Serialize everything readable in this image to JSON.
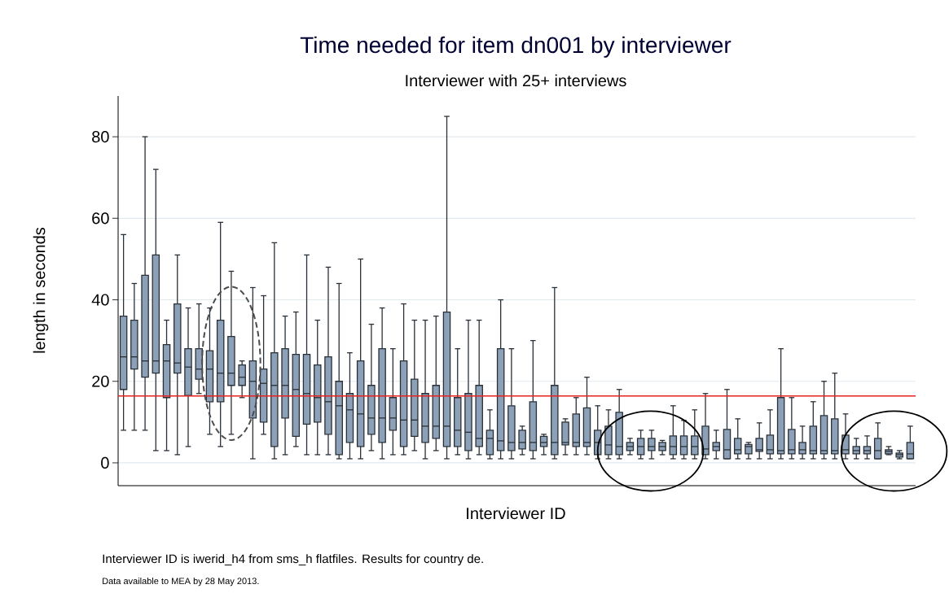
{
  "chart_data": {
    "type": "box",
    "title": "Time needed for item dn001 by interviewer",
    "subtitle": "Interviewer with 25+ interviews",
    "xlabel": "Interviewer ID",
    "ylabel": "length in seconds",
    "annotations": [
      "Interviewer ID is iwerid_h4 from sms_h flatfiles. Results for country de.",
      "Data available to MEA by 28 May 2013."
    ],
    "categories": [
      null,
      null,
      null,
      null,
      null,
      null,
      null,
      null,
      null,
      null,
      null,
      null,
      null,
      null,
      null,
      null,
      null,
      null,
      null,
      null,
      null,
      null,
      null,
      null,
      null,
      null,
      null,
      null,
      null,
      null,
      null,
      null,
      null,
      null,
      null,
      null,
      null,
      null,
      null,
      null,
      null,
      null,
      null,
      null,
      null,
      null,
      null,
      null,
      null,
      null,
      null,
      null,
      null,
      null,
      null,
      null,
      null,
      null,
      null,
      null,
      null,
      null,
      null,
      null,
      null,
      null,
      null,
      null,
      null,
      null,
      null,
      null,
      null,
      null
    ],
    "color": "#8ca1b8",
    "boxes": [
      {
        "low": 8,
        "q1": 18,
        "median": 26,
        "q3": 36,
        "high": 56
      },
      {
        "low": 8,
        "q1": 23,
        "median": 26,
        "q3": 35,
        "high": 44
      },
      {
        "low": 8,
        "q1": 21,
        "median": 25,
        "q3": 46,
        "high": 80
      },
      {
        "low": 3,
        "q1": 22,
        "median": 25,
        "q3": 51,
        "high": 72
      },
      {
        "low": 3,
        "q1": 16,
        "median": 25,
        "q3": 29,
        "high": 35
      },
      {
        "low": 2,
        "q1": 22,
        "median": 24.5,
        "q3": 39,
        "high": 51
      },
      {
        "low": 4,
        "q1": 16.5,
        "median": 23.5,
        "q3": 28,
        "high": 38
      },
      {
        "low": 17,
        "q1": 20.5,
        "median": 23,
        "q3": 28,
        "high": 39
      },
      {
        "low": 7,
        "q1": 15,
        "median": 23,
        "q3": 27.5,
        "high": 38
      },
      {
        "low": 4,
        "q1": 15,
        "median": 22,
        "q3": 35,
        "high": 59
      },
      {
        "low": 7,
        "q1": 19,
        "median": 22,
        "q3": 31,
        "high": 47
      },
      {
        "low": 16,
        "q1": 19,
        "median": 21,
        "q3": 24,
        "high": 25
      },
      {
        "low": 1,
        "q1": 11,
        "median": 20,
        "q3": 25,
        "high": 43
      },
      {
        "low": 7,
        "q1": 10,
        "median": 19.5,
        "q3": 23,
        "high": 41
      },
      {
        "low": 1,
        "q1": 4,
        "median": 19,
        "q3": 27,
        "high": 54
      },
      {
        "low": 2,
        "q1": 11,
        "median": 19,
        "q3": 28,
        "high": 36
      },
      {
        "low": 4,
        "q1": 6.5,
        "median": 18,
        "q3": 26.6,
        "high": 37
      },
      {
        "low": 2,
        "q1": 9.5,
        "median": 17,
        "q3": 26.6,
        "high": 51
      },
      {
        "low": 2,
        "q1": 10,
        "median": 16,
        "q3": 24,
        "high": 35
      },
      {
        "low": 2,
        "q1": 7,
        "median": 15,
        "q3": 26,
        "high": 48
      },
      {
        "low": 1,
        "q1": 2,
        "median": 14,
        "q3": 20,
        "high": 44
      },
      {
        "low": 1,
        "q1": 5,
        "median": 13,
        "q3": 17,
        "high": 27
      },
      {
        "low": 1,
        "q1": 4,
        "median": 12,
        "q3": 25,
        "high": 50
      },
      {
        "low": 3,
        "q1": 7,
        "median": 11,
        "q3": 19,
        "high": 34
      },
      {
        "low": 1,
        "q1": 5,
        "median": 11,
        "q3": 28,
        "high": 38
      },
      {
        "low": 2,
        "q1": 8,
        "median": 11,
        "q3": 16,
        "high": 28
      },
      {
        "low": 2,
        "q1": 4,
        "median": 10.5,
        "q3": 25,
        "high": 39
      },
      {
        "low": 3,
        "q1": 6.5,
        "median": 10.5,
        "q3": 20.5,
        "high": 35
      },
      {
        "low": 1,
        "q1": 5,
        "median": 9,
        "q3": 17,
        "high": 35
      },
      {
        "low": 3,
        "q1": 6,
        "median": 9,
        "q3": 19,
        "high": 36
      },
      {
        "low": 1,
        "q1": 4,
        "median": 9,
        "q3": 37,
        "high": 85
      },
      {
        "low": 2,
        "q1": 4,
        "median": 8,
        "q3": 16,
        "high": 28
      },
      {
        "low": 1,
        "q1": 3,
        "median": 7.5,
        "q3": 17,
        "high": 35
      },
      {
        "low": 2,
        "q1": 4,
        "median": 6,
        "q3": 19,
        "high": 35
      },
      {
        "low": 1,
        "q1": 2,
        "median": 6,
        "q3": 8,
        "high": 13
      },
      {
        "low": 1,
        "q1": 3,
        "median": 5.4,
        "q3": 28,
        "high": 40
      },
      {
        "low": 1,
        "q1": 3,
        "median": 5,
        "q3": 14,
        "high": 28
      },
      {
        "low": 2,
        "q1": 3.4,
        "median": 5,
        "q3": 8,
        "high": 9
      },
      {
        "low": 1,
        "q1": 3,
        "median": 5,
        "q3": 15,
        "high": 30
      },
      {
        "low": 2,
        "q1": 4,
        "median": 5,
        "q3": 6.5,
        "high": 7
      },
      {
        "low": 1,
        "q1": 2,
        "median": 5,
        "q3": 19,
        "high": 43
      },
      {
        "low": 2,
        "q1": 4.4,
        "median": 5,
        "q3": 10,
        "high": 10.8
      },
      {
        "low": 2,
        "q1": 4,
        "median": 5,
        "q3": 12,
        "high": 16
      },
      {
        "low": 2,
        "q1": 4,
        "median": 5,
        "q3": 13.5,
        "high": 21
      },
      {
        "low": 1,
        "q1": 2,
        "median": 5,
        "q3": 8,
        "high": 14
      },
      {
        "low": 1,
        "q1": 2,
        "median": 4.4,
        "q3": 9,
        "high": 13
      },
      {
        "low": 1,
        "q1": 2,
        "median": 4,
        "q3": 12.4,
        "high": 18
      },
      {
        "low": 2,
        "q1": 3,
        "median": 4,
        "q3": 5,
        "high": 6
      },
      {
        "low": 1,
        "q1": 2,
        "median": 4,
        "q3": 6,
        "high": 8
      },
      {
        "low": 1,
        "q1": 3,
        "median": 4,
        "q3": 6,
        "high": 8
      },
      {
        "low": 2,
        "q1": 3,
        "median": 4,
        "q3": 5,
        "high": 5.5
      },
      {
        "low": 1,
        "q1": 2,
        "median": 4,
        "q3": 6.6,
        "high": 14
      },
      {
        "low": 1,
        "q1": 2,
        "median": 4,
        "q3": 6.6,
        "high": 10.4
      },
      {
        "low": 1,
        "q1": 2,
        "median": 4,
        "q3": 6.6,
        "high": 13
      },
      {
        "low": 1,
        "q1": 2,
        "median": 3.4,
        "q3": 9,
        "high": 17
      },
      {
        "low": 1,
        "q1": 3,
        "median": 4,
        "q3": 5,
        "high": 8
      },
      {
        "low": 1,
        "q1": 1,
        "median": 3.2,
        "q3": 8.2,
        "high": 18
      },
      {
        "low": 1,
        "q1": 2.2,
        "median": 3.2,
        "q3": 6,
        "high": 10.8
      },
      {
        "low": 1,
        "q1": 2.2,
        "median": 4,
        "q3": 4.5,
        "high": 5
      },
      {
        "low": 1,
        "q1": 2.8,
        "median": 3.2,
        "q3": 6,
        "high": 9.8
      },
      {
        "low": 1,
        "q1": 2.2,
        "median": 3.2,
        "q3": 6.8,
        "high": 13
      },
      {
        "low": 1,
        "q1": 2.2,
        "median": 3,
        "q3": 16,
        "high": 28
      },
      {
        "low": 1,
        "q1": 2.2,
        "median": 3.2,
        "q3": 8.2,
        "high": 16
      },
      {
        "low": 1,
        "q1": 2.2,
        "median": 3.2,
        "q3": 5,
        "high": 9
      },
      {
        "low": 1,
        "q1": 2.2,
        "median": 3,
        "q3": 9,
        "high": 15
      },
      {
        "low": 1,
        "q1": 2.2,
        "median": 3,
        "q3": 11.6,
        "high": 20
      },
      {
        "low": 1,
        "q1": 2.2,
        "median": 3,
        "q3": 10.8,
        "high": 22
      },
      {
        "low": 1,
        "q1": 2.2,
        "median": 3.2,
        "q3": 6.8,
        "high": 12
      },
      {
        "low": 1,
        "q1": 2.2,
        "median": 3,
        "q3": 4,
        "high": 6
      },
      {
        "low": 1,
        "q1": 2.2,
        "median": 3,
        "q3": 4,
        "high": 6.6
      },
      {
        "low": 1,
        "q1": 1,
        "median": 3,
        "q3": 6,
        "high": 9.8
      },
      {
        "low": 2,
        "q1": 2.2,
        "median": 2.8,
        "q3": 3.2,
        "high": 4
      },
      {
        "low": 1,
        "q1": 1.4,
        "median": 2,
        "q3": 2.4,
        "high": 3
      },
      {
        "low": 1,
        "q1": 1,
        "median": 2.2,
        "q3": 5,
        "high": 9
      }
    ],
    "ylim": [
      -5.6,
      90
    ],
    "yticks": [
      0,
      20,
      40,
      60,
      80
    ],
    "grid": "y",
    "tick_labels": "y",
    "ref_lines": [
      {
        "axis": "y",
        "value": 16.4,
        "color": "#e8231f"
      }
    ]
  }
}
